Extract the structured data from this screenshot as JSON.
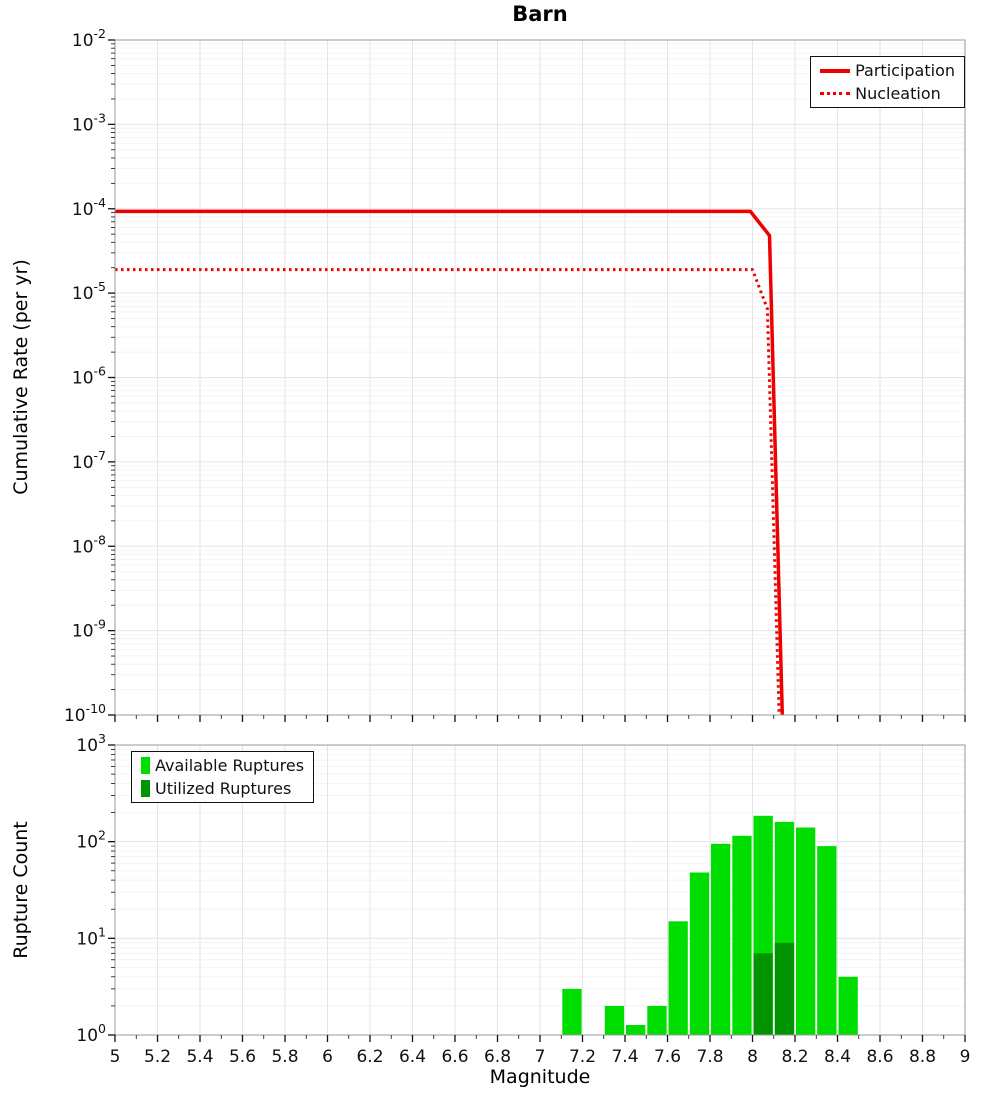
{
  "figure": {
    "title": "Barn"
  },
  "chart_data": [
    {
      "type": "line",
      "title": "Barn",
      "xlabel": "",
      "ylabel": "Cumulative Rate (per yr)",
      "x_axis": {
        "min": 5,
        "max": 9,
        "major_tick_step": 0.2,
        "tick_labels": null
      },
      "y_axis": {
        "scale": "log",
        "min_exp": -10,
        "max_exp": -2,
        "tick_exponents": [
          -2,
          -3,
          -4,
          -5,
          -6,
          -7,
          -8,
          -9,
          -10
        ]
      },
      "legend": {
        "position": "top-right"
      },
      "series": [
        {
          "name": "Participation",
          "color": "#ee0000",
          "line_style": "solid",
          "line_width": 3.5,
          "points": [
            [
              5.0,
              9.3e-05
            ],
            [
              7.99,
              9.3e-05
            ],
            [
              8.08,
              4.8e-05
            ],
            [
              8.14,
              1e-10
            ]
          ]
        },
        {
          "name": "Nucleation",
          "color": "#ee0000",
          "line_style": "dotted",
          "line_width": 3,
          "points": [
            [
              5.0,
              1.9e-05
            ],
            [
              8.0,
              1.9e-05
            ],
            [
              8.07,
              6.5e-06
            ],
            [
              8.125,
              1e-10
            ]
          ]
        }
      ]
    },
    {
      "type": "bar",
      "title": "",
      "xlabel": "Magnitude",
      "ylabel": "Rupture Count",
      "x_axis": {
        "min": 5,
        "max": 9,
        "major_tick_step": 0.2,
        "tick_labels": [
          "5",
          "5.2",
          "5.4",
          "5.6",
          "5.8",
          "6",
          "6.2",
          "6.4",
          "6.6",
          "6.8",
          "7",
          "7.2",
          "7.4",
          "7.6",
          "7.8",
          "8",
          "8.2",
          "8.4",
          "8.6",
          "8.8",
          "9"
        ]
      },
      "y_axis": {
        "scale": "log",
        "min_exp": 0,
        "max_exp": 3,
        "tick_exponents": [
          3,
          2,
          1,
          0
        ]
      },
      "legend": {
        "position": "top-left"
      },
      "bar_width_mag": 0.1,
      "series": [
        {
          "name": "Available Ruptures",
          "color": "#00dd00",
          "bars": [
            {
              "magnitude": 7.15,
              "count": 3
            },
            {
              "magnitude": 7.35,
              "count": 2
            },
            {
              "magnitude": 7.45,
              "count": 1
            },
            {
              "magnitude": 7.55,
              "count": 2
            },
            {
              "magnitude": 7.65,
              "count": 15
            },
            {
              "magnitude": 7.75,
              "count": 48
            },
            {
              "magnitude": 7.85,
              "count": 95
            },
            {
              "magnitude": 7.95,
              "count": 115
            },
            {
              "magnitude": 8.05,
              "count": 185
            },
            {
              "magnitude": 8.15,
              "count": 160
            },
            {
              "magnitude": 8.25,
              "count": 140
            },
            {
              "magnitude": 8.35,
              "count": 90
            },
            {
              "magnitude": 8.45,
              "count": 4
            }
          ]
        },
        {
          "name": "Utilized Ruptures",
          "color": "#009400",
          "bars": [
            {
              "magnitude": 8.05,
              "count": 7
            },
            {
              "magnitude": 8.15,
              "count": 9
            }
          ]
        }
      ]
    }
  ]
}
